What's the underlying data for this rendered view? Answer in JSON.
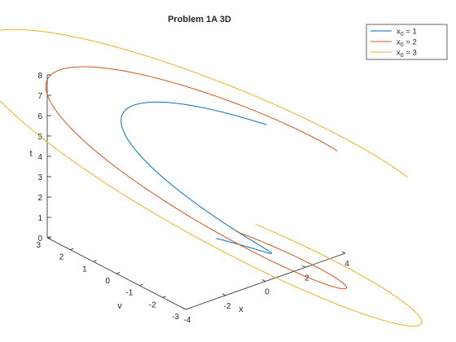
{
  "chart_data": {
    "type": "line3d",
    "title": "Problem 1A 3D",
    "xlabel": "x",
    "ylabel": "v",
    "zlabel": "t",
    "xlim": [
      -4,
      4
    ],
    "ylim": [
      -3,
      3
    ],
    "zlim": [
      0,
      8
    ],
    "x_ticks": [
      "-4",
      "-2",
      "0",
      "2",
      "4"
    ],
    "y_ticks": [
      "-3",
      "-2",
      "-1",
      "0",
      "1",
      "2",
      "3"
    ],
    "z_ticks": [
      "0",
      "1",
      "2",
      "3",
      "4",
      "5",
      "6",
      "7",
      "8"
    ],
    "grid": false,
    "legend_position": "top-right",
    "t_range": [
      0,
      2.3
    ],
    "series": [
      {
        "name": "x0 = 1",
        "label_main": "x",
        "label_sub": "0",
        "label_tail": " = 1",
        "x0": 1,
        "color": "#0072BD"
      },
      {
        "name": "x0 = 2",
        "label_main": "x",
        "label_sub": "0",
        "label_tail": " = 2",
        "x0": 2,
        "color": "#D95319"
      },
      {
        "name": "x0 = 3",
        "label_main": "x",
        "label_sub": "0",
        "label_tail": " = 3",
        "x0": 3,
        "color": "#EDB120"
      }
    ]
  }
}
